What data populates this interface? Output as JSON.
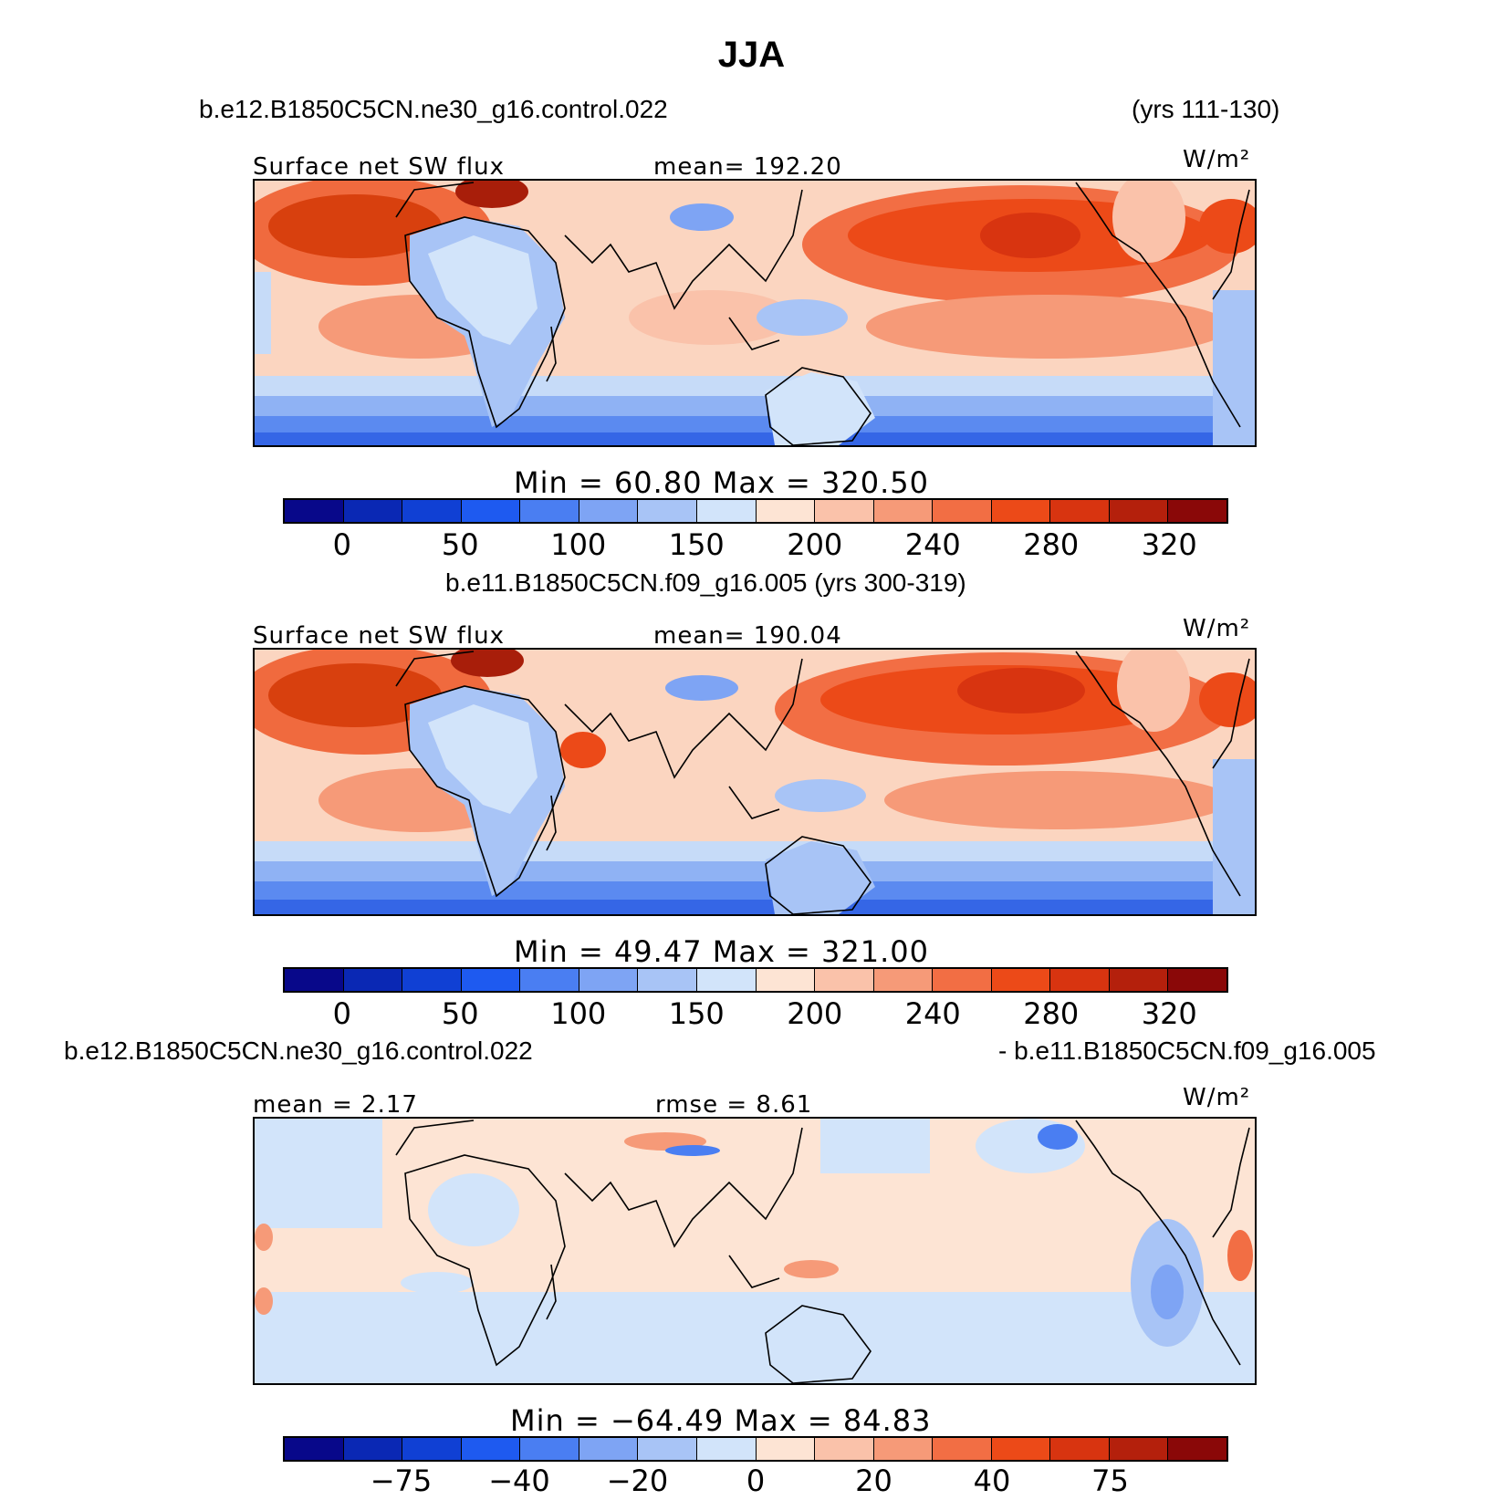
{
  "title": "JJA",
  "units": "W/m²",
  "panels": [
    {
      "case_left": "b.e12.B1850C5CN.ne30_g16.control.022",
      "case_right": "(yrs 111-130)",
      "variable": "Surface net SW flux",
      "stat": "mean= 192.20",
      "minmax": "Min =   60.80  Max  =  320.50",
      "colorbar_ticks": [
        "0",
        "50",
        "100",
        "150",
        "200",
        "240",
        "280",
        "320"
      ],
      "colorbar_colors": [
        "#08088a",
        "#0a28b4",
        "#1040d4",
        "#1e5af0",
        "#4a7ef2",
        "#7ea4f4",
        "#a8c4f6",
        "#d2e4fa",
        "#fde4d4",
        "#fac2aa",
        "#f69a78",
        "#f26e44",
        "#ec4a18",
        "#d83410",
        "#b4200c",
        "#8a0808"
      ],
      "map_style": "absolute"
    },
    {
      "case_left": "b.e11.B1850C5CN.f09_g16.005 (yrs 300-319)",
      "case_right": "",
      "variable": "Surface net SW flux",
      "stat": "mean= 190.04",
      "minmax": "Min =   49.47  Max  =  321.00",
      "colorbar_ticks": [
        "0",
        "50",
        "100",
        "150",
        "200",
        "240",
        "280",
        "320"
      ],
      "colorbar_colors": [
        "#08088a",
        "#0a28b4",
        "#1040d4",
        "#1e5af0",
        "#4a7ef2",
        "#7ea4f4",
        "#a8c4f6",
        "#d2e4fa",
        "#fde4d4",
        "#fac2aa",
        "#f69a78",
        "#f26e44",
        "#ec4a18",
        "#d83410",
        "#b4200c",
        "#8a0808"
      ],
      "map_style": "absolute"
    },
    {
      "case_left": "b.e12.B1850C5CN.ne30_g16.control.022",
      "case_right": "- b.e11.B1850C5CN.f09_g16.005",
      "variable": "mean =    2.17",
      "stat": "rmse =     8.61",
      "minmax": "Min = −64.49  Max  =   84.83",
      "colorbar_ticks": [
        "−75",
        "−40",
        "−20",
        "0",
        "20",
        "40",
        "75"
      ],
      "colorbar_colors": [
        "#08088a",
        "#0a28b4",
        "#1040d4",
        "#1e5af0",
        "#4a7ef2",
        "#7ea4f4",
        "#a8c4f6",
        "#d2e4fa",
        "#fde4d4",
        "#fac2aa",
        "#f69a78",
        "#f26e44",
        "#ec4a18",
        "#d83410",
        "#b4200c",
        "#8a0808"
      ],
      "map_style": "difference"
    }
  ]
}
